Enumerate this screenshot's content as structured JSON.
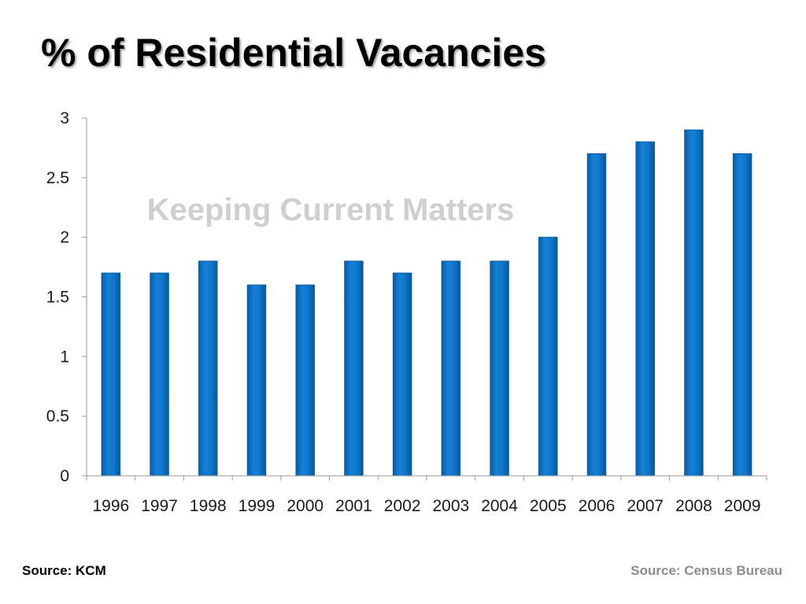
{
  "slide": {
    "title": "% of Residential Vacancies",
    "watermark": "Keeping Current Matters",
    "source_left": "Source: KCM",
    "source_right": "Source: Census Bureau"
  },
  "colors": {
    "bar": "#0a6fc4",
    "bar_edge": "#075a9f",
    "axis": "#9a9a9a",
    "watermark": "#cfcfcf",
    "source_right": "#8c8c8c"
  },
  "chart_data": {
    "type": "bar",
    "title": "% of Residential Vacancies",
    "xlabel": "",
    "ylabel": "",
    "categories": [
      "1996",
      "1997",
      "1998",
      "1999",
      "2000",
      "2001",
      "2002",
      "2003",
      "2004",
      "2005",
      "2006",
      "2007",
      "2008",
      "2009"
    ],
    "values": [
      1.7,
      1.7,
      1.8,
      1.6,
      1.6,
      1.8,
      1.7,
      1.8,
      1.8,
      2.0,
      2.7,
      2.8,
      2.9,
      2.7
    ],
    "ylim": [
      0,
      3
    ],
    "yticks": [
      "0",
      "0.5",
      "1",
      "1.5",
      "2",
      "2.5",
      "3"
    ],
    "grid": false,
    "legend": "none"
  }
}
